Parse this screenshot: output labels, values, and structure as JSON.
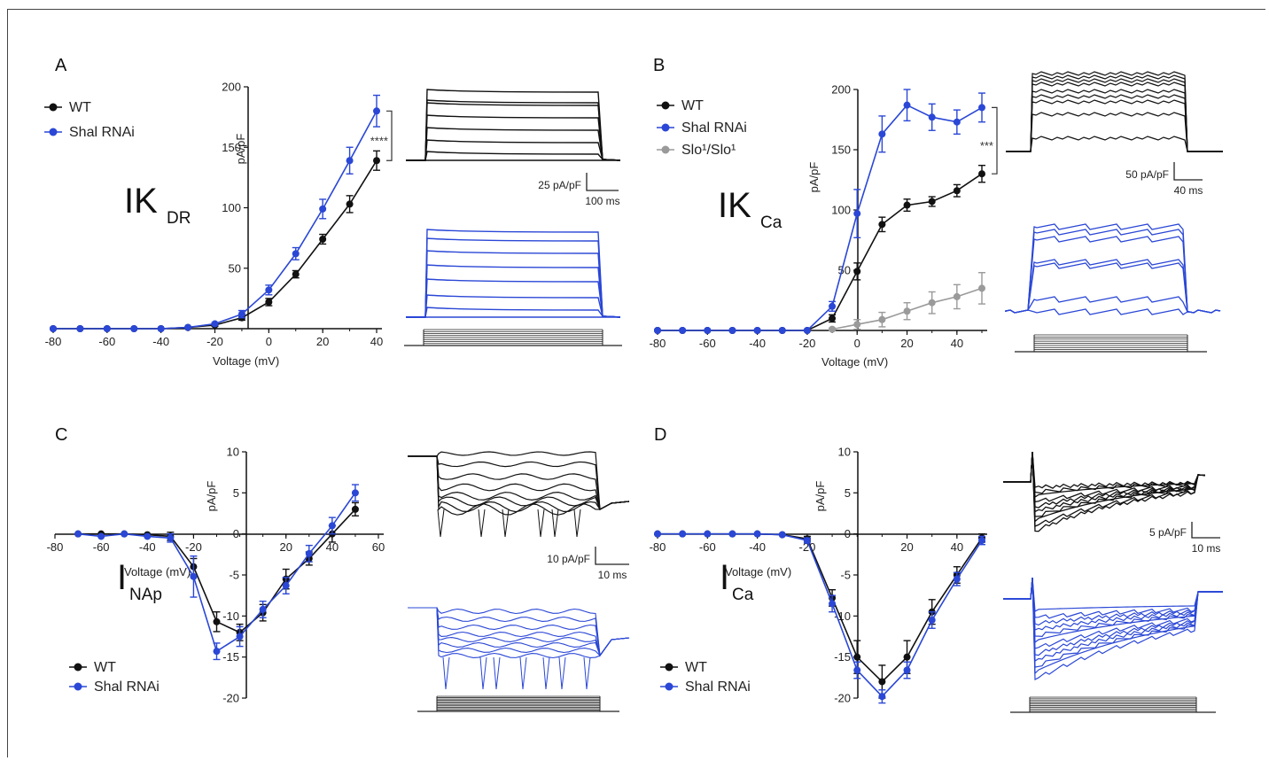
{
  "colors": {
    "wt": "#111111",
    "shal": "#2a47d6",
    "slo": "#9a9a9a",
    "axis": "#111111"
  },
  "chart_data": [
    {
      "id": "A",
      "type": "line",
      "panel_label": "A",
      "title_main": "IK",
      "title_sub": "DR",
      "xlabel": "Voltage (mV)",
      "ylabel": "pA/pF",
      "xlim": [
        -80,
        40
      ],
      "ylim": [
        0,
        200
      ],
      "xticks": [
        -80,
        -60,
        -40,
        -20,
        0,
        20,
        40
      ],
      "yticks": [
        50,
        100,
        150,
        200
      ],
      "x": [
        -80,
        -70,
        -60,
        -50,
        -40,
        -30,
        -20,
        -10,
        0,
        10,
        20,
        30,
        40
      ],
      "series": [
        {
          "name": "WT",
          "color_key": "wt",
          "values": [
            0,
            0,
            0,
            0,
            0,
            1,
            3,
            9,
            22,
            45,
            74,
            103,
            139
          ],
          "errors": [
            0,
            0,
            0,
            0,
            0,
            0,
            1,
            2,
            3,
            3,
            4,
            7,
            8
          ]
        },
        {
          "name": "Shal RNAi",
          "color_key": "shal",
          "values": [
            0,
            0,
            0,
            0,
            0,
            1,
            4,
            12,
            32,
            62,
            99,
            139,
            180
          ],
          "errors": [
            0,
            0,
            0,
            0,
            0,
            0,
            1,
            3,
            4,
            5,
            8,
            11,
            13
          ]
        }
      ],
      "significance": "****",
      "scalebar": {
        "y_label": "25 pA/pF",
        "x_label": "100 ms"
      }
    },
    {
      "id": "B",
      "type": "line",
      "panel_label": "B",
      "title_main": "IK",
      "title_sub": "Ca",
      "xlabel": "Voltage (mV)",
      "ylabel": "pA/pF",
      "xlim": [
        -80,
        50
      ],
      "ylim": [
        0,
        200
      ],
      "xticks": [
        -80,
        -60,
        -40,
        -20,
        0,
        20,
        40
      ],
      "yticks": [
        50,
        100,
        150,
        200
      ],
      "x": [
        -80,
        -70,
        -60,
        -50,
        -40,
        -30,
        -20,
        -10,
        0,
        10,
        20,
        30,
        40,
        50
      ],
      "series": [
        {
          "name": "WT",
          "color_key": "wt",
          "values": [
            0,
            0,
            0,
            0,
            0,
            0,
            0,
            10,
            49,
            88,
            104,
            107,
            116,
            130
          ],
          "errors": [
            0,
            0,
            0,
            0,
            0,
            0,
            0,
            3,
            7,
            6,
            5,
            4,
            5,
            7
          ]
        },
        {
          "name": "Shal RNAi",
          "color_key": "shal",
          "values": [
            0,
            0,
            0,
            0,
            0,
            0,
            0,
            20,
            97,
            163,
            187,
            177,
            173,
            185
          ],
          "errors": [
            0,
            0,
            0,
            0,
            0,
            0,
            0,
            4,
            20,
            15,
            13,
            11,
            10,
            12
          ]
        },
        {
          "name": "Slo¹/Slo¹",
          "color_key": "slo",
          "values": [
            null,
            null,
            null,
            null,
            null,
            null,
            null,
            1,
            5,
            9,
            16,
            23,
            28,
            35
          ],
          "errors": [
            0,
            0,
            0,
            0,
            0,
            0,
            0,
            1,
            4,
            6,
            7,
            9,
            10,
            13
          ]
        }
      ],
      "significance": "***",
      "scalebar": {
        "y_label": "50 pA/pF",
        "x_label": "40 ms"
      }
    },
    {
      "id": "C",
      "type": "line",
      "panel_label": "C",
      "title_main": "I",
      "title_sub": "NAp",
      "xlabel": "Voltage (mV)",
      "ylabel": "pA/pF",
      "xlim": [
        -80,
        60
      ],
      "ylim": [
        -20,
        10
      ],
      "xticks": [
        -80,
        -60,
        -40,
        -20,
        20,
        40,
        60
      ],
      "yticks": [
        -20,
        -15,
        -10,
        -5,
        0,
        5,
        10
      ],
      "x": [
        -70,
        -60,
        -50,
        -40,
        -30,
        -20,
        -10,
        0,
        10,
        20,
        30,
        40,
        50
      ],
      "series": [
        {
          "name": "WT",
          "color_key": "wt",
          "values": [
            0,
            0,
            0,
            -0.1,
            -0.3,
            -4,
            -10.7,
            -12,
            -9.6,
            -5.5,
            -3,
            0,
            3
          ],
          "errors": [
            0,
            0,
            0,
            0,
            0.5,
            1,
            1.2,
            1,
            1,
            1.2,
            0.8,
            1,
            0.8
          ]
        },
        {
          "name": "Shal RNAi",
          "color_key": "shal",
          "values": [
            0,
            -0.3,
            0,
            -0.3,
            -0.5,
            -5.2,
            -14.3,
            -12.5,
            -9.2,
            -6.3,
            -2.4,
            1,
            5
          ],
          "errors": [
            0,
            0,
            0,
            0,
            0.5,
            2.5,
            1,
            1.2,
            1,
            1,
            1,
            1,
            1
          ]
        }
      ],
      "scalebar": {
        "y_label": "10 pA/pF",
        "x_label": "10 ms"
      }
    },
    {
      "id": "D",
      "type": "line",
      "panel_label": "D",
      "title_main": "I",
      "title_sub": "Ca",
      "xlabel": "Voltage (mV)",
      "ylabel": "pA/pF",
      "xlim": [
        -80,
        50
      ],
      "ylim": [
        -20,
        10
      ],
      "xticks": [
        -80,
        -60,
        -40,
        -20,
        20,
        40
      ],
      "yticks": [
        -20,
        -15,
        -10,
        -5,
        0,
        5,
        10
      ],
      "x": [
        -80,
        -70,
        -60,
        -50,
        -40,
        -30,
        -20,
        -10,
        0,
        10,
        20,
        30,
        40,
        50
      ],
      "series": [
        {
          "name": "WT",
          "color_key": "wt",
          "values": [
            0,
            0,
            0,
            0,
            0,
            -0.1,
            -0.6,
            -7.8,
            -15,
            -18,
            -15,
            -9.5,
            -5,
            -0.5
          ],
          "errors": [
            0,
            0,
            0,
            0,
            0,
            0,
            0.3,
            1,
            2,
            2,
            2,
            1.5,
            1,
            0.5
          ]
        },
        {
          "name": "Shal RNAi",
          "color_key": "shal",
          "values": [
            0,
            0,
            0,
            0,
            0,
            -0.1,
            -0.8,
            -8.5,
            -16.6,
            -19.8,
            -16.6,
            -10.5,
            -5.5,
            -0.8
          ],
          "errors": [
            0,
            0,
            0,
            0,
            0,
            0,
            0.3,
            1,
            1,
            0.8,
            1,
            1,
            0.8,
            0.5
          ]
        }
      ],
      "scalebar": {
        "y_label": "5 pA/pF",
        "x_label": "10 ms"
      }
    }
  ]
}
